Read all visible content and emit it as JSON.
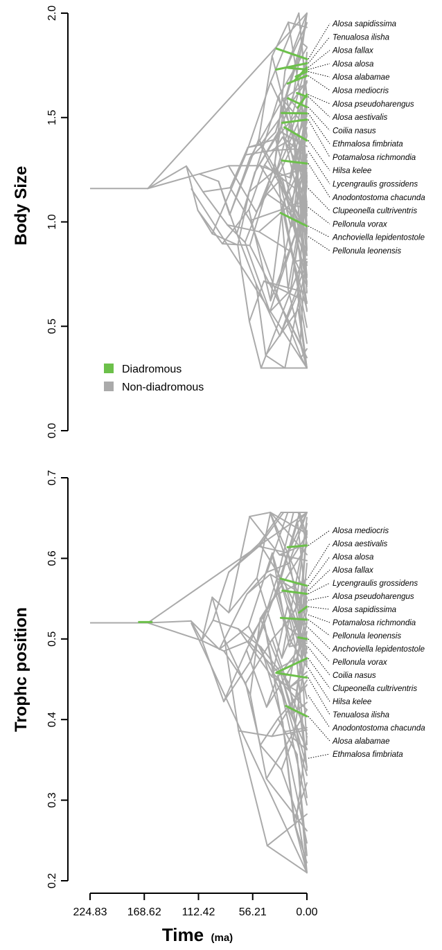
{
  "colors": {
    "diadromous": "#6cc04a",
    "non_diadromous": "#aaaaaa",
    "axis": "#000000"
  },
  "chart_data": [
    {
      "type": "line",
      "ylabel": "Body Size",
      "ylim": [
        0.0,
        2.0
      ],
      "yticks": [
        "0.0",
        "0.5",
        "1.0",
        "1.5",
        "2.0"
      ],
      "xlim": [
        224.83,
        0.0
      ],
      "legend": {
        "placement": "lower-left",
        "entries": [
          {
            "label": "Diadromous",
            "color": "#6cc04a"
          },
          {
            "label": "Non-diadromous",
            "color": "#aaaaaa"
          }
        ]
      },
      "tip_labels": [
        {
          "label": "Alosa sapidissima",
          "value": 1.78
        },
        {
          "label": "Tenualosa ilisha",
          "value": 1.76
        },
        {
          "label": "Alosa fallax",
          "value": 1.74
        },
        {
          "label": "Alosa alosa",
          "value": 1.73
        },
        {
          "label": "Alosa alabamae",
          "value": 1.72
        },
        {
          "label": "Alosa mediocris",
          "value": 1.7
        },
        {
          "label": "Alosa pseudoharengus",
          "value": 1.61
        },
        {
          "label": "Alosa aestivalis",
          "value": 1.6
        },
        {
          "label": "Coilia nasus",
          "value": 1.55
        },
        {
          "label": "Ethmalosa fimbriata",
          "value": 1.52
        },
        {
          "label": "Potamalosa richmondia",
          "value": 1.49
        },
        {
          "label": "Hilsa kelee",
          "value": 1.39
        },
        {
          "label": "Lycengraulis grossidens",
          "value": 1.34
        },
        {
          "label": "Anodontostoma chacunda",
          "value": 1.28
        },
        {
          "label": "Clupeonella cultriventris",
          "value": 1.16
        },
        {
          "label": "Pellonula vorax",
          "value": 1.07
        },
        {
          "label": "Anchoviella lepidentostole",
          "value": 0.98
        },
        {
          "label": "Pellonula leonensis",
          "value": 0.93
        }
      ]
    },
    {
      "type": "line",
      "ylabel": "Trophc position",
      "ylim": [
        0.2,
        0.7
      ],
      "yticks": [
        "0.2",
        "0.3",
        "0.4",
        "0.5",
        "0.6",
        "0.7"
      ],
      "xlim": [
        224.83,
        0.0
      ],
      "xlabel": "Time",
      "xunit": "(ma)",
      "xticks": [
        "224.83",
        "168.62",
        "112.42",
        "56.21",
        "0.00"
      ],
      "tip_labels": [
        {
          "label": "Alosa mediocris",
          "value": 0.616
        },
        {
          "label": "Alosa aestivalis",
          "value": 0.576
        },
        {
          "label": "Alosa alosa",
          "value": 0.566
        },
        {
          "label": "Alosa fallax",
          "value": 0.56
        },
        {
          "label": "Lycengraulis grossidens",
          "value": 0.556
        },
        {
          "label": "Alosa pseudoharengus",
          "value": 0.548
        },
        {
          "label": "Alosa sapidissima",
          "value": 0.54
        },
        {
          "label": "Potamalosa richmondia",
          "value": 0.53
        },
        {
          "label": "Pellonula leonensis",
          "value": 0.524
        },
        {
          "label": "Anchoviella lepidentostole",
          "value": 0.514
        },
        {
          "label": "Pellonula vorax",
          "value": 0.5
        },
        {
          "label": "Coilia nasus",
          "value": 0.49
        },
        {
          "label": "Clupeonella cultriventris",
          "value": 0.476
        },
        {
          "label": "Hilsa kelee",
          "value": 0.464
        },
        {
          "label": "Tenualosa ilisha",
          "value": 0.452
        },
        {
          "label": "Anodontostoma chacunda",
          "value": 0.43
        },
        {
          "label": "Alosa alabamae",
          "value": 0.404
        },
        {
          "label": "Ethmalosa fimbriata",
          "value": 0.352
        }
      ]
    }
  ]
}
